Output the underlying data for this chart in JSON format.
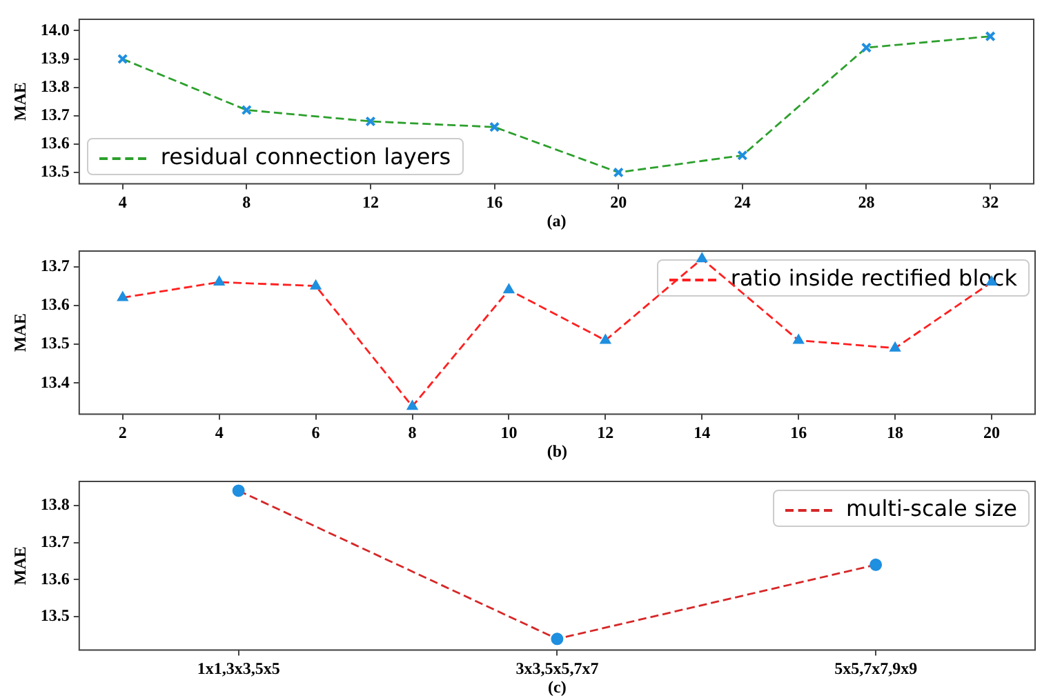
{
  "chart_data": [
    {
      "type": "line",
      "xlabel": "(a)",
      "ylabel": "MAE",
      "x": [
        4,
        8,
        12,
        16,
        20,
        24,
        28,
        32
      ],
      "xlim": [
        2.6,
        33.4
      ],
      "xticks": [
        4,
        8,
        12,
        16,
        20,
        24,
        28,
        32
      ],
      "ylim": [
        13.46,
        14.04
      ],
      "yticks": [
        13.5,
        13.6,
        13.7,
        13.8,
        13.9,
        {
          "value": 14,
          "label": "14.0"
        }
      ],
      "marker": "cross",
      "line_style": "dashed",
      "legend": "bottom left",
      "series": [
        {
          "name": "residual connection layers",
          "color": "#2ca02c",
          "colors": [
            "#1f8fe0",
            "#1f8fe0",
            "#1f8fe0",
            "#1f8fe0",
            "#1f8fe0",
            "#1f8fe0",
            "#1f8fe0",
            "#1f8fe0"
          ],
          "values": [
            13.9,
            13.72,
            13.68,
            13.66,
            13.5,
            13.56,
            13.94,
            13.98
          ]
        }
      ]
    },
    {
      "type": "line",
      "xlabel": "(b)",
      "ylabel": "MAE",
      "x": [
        2,
        4,
        6,
        8,
        10,
        12,
        14,
        16,
        18,
        20
      ],
      "xlim": [
        1.1,
        20.9
      ],
      "xticks": [
        2,
        4,
        6,
        8,
        10,
        12,
        14,
        16,
        18,
        20
      ],
      "ylim": [
        13.32,
        13.74
      ],
      "yticks": [
        13.4,
        13.5,
        13.6,
        13.7
      ],
      "marker": "triangle",
      "line_style": "dashed",
      "legend": "top right",
      "series": [
        {
          "name": "ratio inside rectified block",
          "color": "#ff2020",
          "colors": [
            "#1f8fe0",
            "#1f8fe0",
            "#1f8fe0",
            "#1f8fe0",
            "#1f8fe0",
            "#1f8fe0",
            "#1f8fe0",
            "#1f8fe0",
            "#1f8fe0",
            "#1f8fe0"
          ],
          "values": [
            13.62,
            13.66,
            13.65,
            13.34,
            13.64,
            13.51,
            13.72,
            13.51,
            13.49,
            13.66
          ]
        }
      ]
    },
    {
      "type": "line",
      "xlabel": "(c)",
      "ylabel": "MAE",
      "categories": [
        "1x1,3x3,5x5",
        "3x3,5x5,7x7",
        "5x5,7x7,9x9"
      ],
      "ylim": [
        13.41,
        13.865
      ],
      "yticks": [
        13.5,
        13.6,
        13.7,
        13.8
      ],
      "marker": "circle",
      "line_style": "dashed",
      "legend": "top right",
      "series": [
        {
          "name": "multi-scale size",
          "color": "#d62728",
          "colors": [
            "#1f8fe0",
            "#1f8fe0",
            "#1f8fe0"
          ],
          "values": [
            13.84,
            13.44,
            13.64
          ]
        }
      ]
    }
  ]
}
